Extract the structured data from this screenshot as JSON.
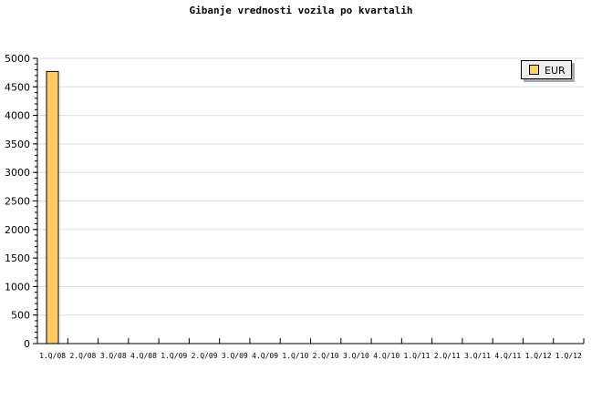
{
  "chart_data": {
    "type": "bar",
    "title": "Gibanje vrednosti vozila po kvartalih",
    "categories": [
      "1.Q/08",
      "2.Q/08",
      "3.Q/08",
      "4.Q/08",
      "1.Q/09",
      "2.Q/09",
      "3.Q/09",
      "4.Q/09",
      "1.Q/10",
      "2.Q/10",
      "3.Q/10",
      "4.Q/10",
      "1.Q/11",
      "2.Q/11",
      "3.Q/11",
      "4.Q/11",
      "1.Q/12",
      "1.Q/12"
    ],
    "series": [
      {
        "name": "EUR",
        "values": [
          4770,
          0,
          0,
          0,
          0,
          0,
          0,
          0,
          0,
          0,
          0,
          0,
          0,
          0,
          0,
          0,
          0,
          0
        ],
        "color": "#ffcc66"
      }
    ],
    "yticks": [
      0,
      500,
      1000,
      1500,
      2000,
      2500,
      3000,
      3500,
      4000,
      4500,
      5000
    ],
    "ylim": [
      0,
      5000
    ],
    "grid": true,
    "legend": "top-right"
  }
}
